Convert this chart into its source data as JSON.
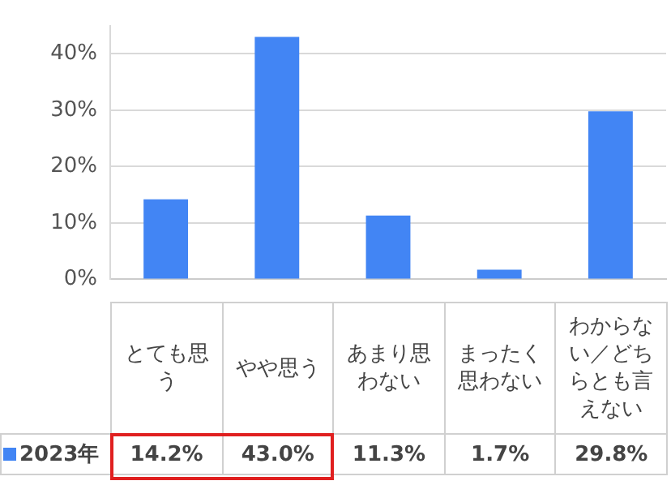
{
  "chart_data": {
    "type": "bar",
    "categories": [
      "とても思う",
      "やや思う",
      "あまり思わない",
      "まったく思わない",
      "わからない／どちらとも言えない"
    ],
    "series": [
      {
        "name": "2023年",
        "color": "#4285f4",
        "values": [
          14.2,
          43.0,
          11.3,
          1.7,
          29.8
        ],
        "value_labels": [
          "14.2%",
          "43.0%",
          "11.3%",
          "1.7%",
          "29.8%"
        ]
      }
    ],
    "ylim": [
      0,
      45
    ],
    "yticks": [
      {
        "value": 0,
        "label": "0%"
      },
      {
        "value": 10,
        "label": "10%"
      },
      {
        "value": 20,
        "label": "20%"
      },
      {
        "value": 30,
        "label": "30%"
      },
      {
        "value": 40,
        "label": "40%"
      }
    ],
    "grid": "y",
    "legend": "bottom"
  }
}
